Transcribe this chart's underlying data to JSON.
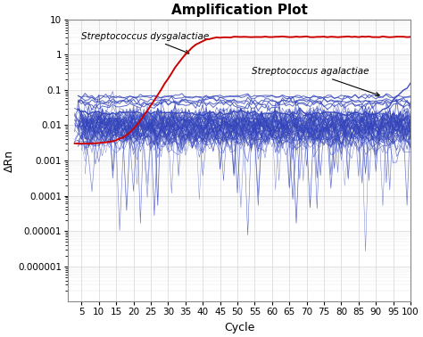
{
  "title": "Amplification Plot",
  "xlabel": "Cycle",
  "ylabel": "ΔRn",
  "xlim": [
    1,
    100
  ],
  "ylim_log": [
    1e-07,
    10
  ],
  "xticks": [
    5,
    10,
    15,
    20,
    25,
    30,
    35,
    40,
    45,
    50,
    55,
    60,
    65,
    70,
    75,
    80,
    85,
    90,
    95,
    100
  ],
  "yticks": [
    1e-06,
    1e-05,
    0.0001,
    0.001,
    0.01,
    0.1,
    1,
    10
  ],
  "ytick_labels": [
    "0.000001",
    "0.00001",
    "0.0001",
    "0.001",
    "0.01",
    "0.1",
    "1",
    "10"
  ],
  "background_color": "#ffffff",
  "grid_color": "#cccccc",
  "red_line_color": "#cc0000",
  "blue_line_color": "#3344bb",
  "annotation_dysgalactiae": "Streptococcus dysgalactiae",
  "annotation_agalactiae": "Streptococcus agalactiae",
  "title_fontsize": 11,
  "axis_fontsize": 9,
  "tick_fontsize": 7.5,
  "annot_fontsize": 7.5
}
